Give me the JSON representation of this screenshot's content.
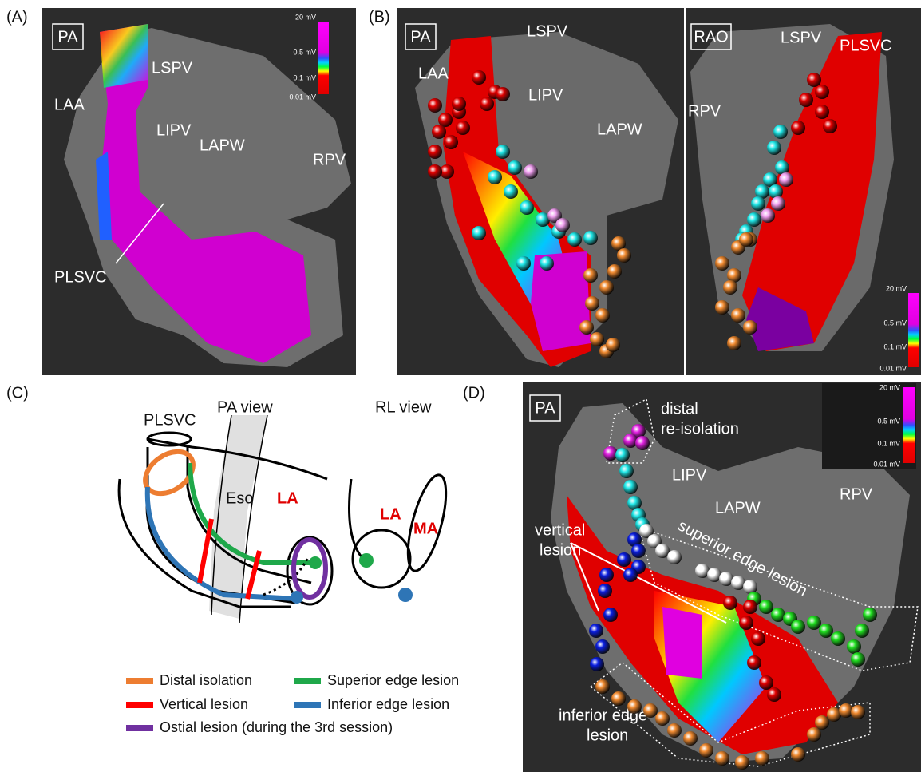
{
  "panels": {
    "a": {
      "label": "(A)",
      "view": "PA",
      "labels": [
        "LSPV",
        "LAA",
        "LIPV",
        "LAPW",
        "RPV",
        "PLSVC"
      ],
      "scale": [
        "20 mV",
        "0.5 mV",
        "0.1 mV",
        "0.01 mV"
      ]
    },
    "b": {
      "label": "(B)",
      "views": [
        "PA",
        "RAO"
      ],
      "labels": [
        "LSPV",
        "LAA",
        "LIPV",
        "LAPW",
        "RPV",
        "LSPV",
        "PLSVC"
      ],
      "scale": [
        "20 mV",
        "0.5 mV",
        "0.1 mV",
        "0.01 mV"
      ]
    },
    "c": {
      "label": "(C)",
      "labels": [
        "PLSVC",
        "PA view",
        "RL view",
        "Eso",
        "LA",
        "LA",
        "MA"
      ],
      "legend": [
        {
          "text": "Distal isolation",
          "color": "#ed7d31"
        },
        {
          "text": "Superior edge lesion",
          "color": "#1fa84a"
        },
        {
          "text": "Vertical lesion",
          "color": "#ff0000"
        },
        {
          "text": "Inferior edge lesion",
          "color": "#2e75b6"
        },
        {
          "text": "Ostial lesion (during the 3rd session)",
          "color": "#7030a0"
        }
      ]
    },
    "d": {
      "label": "(D)",
      "view": "PA",
      "labels": [
        "distal",
        "re-isolation",
        "LIPV",
        "LAPW",
        "RPV",
        "vertical",
        "lesion",
        "superior edge lesion",
        "inferior edge",
        "lesion"
      ],
      "scale": [
        "20 mV",
        "0.5 mV",
        "0.1 mV",
        "0.01 mV"
      ]
    }
  }
}
